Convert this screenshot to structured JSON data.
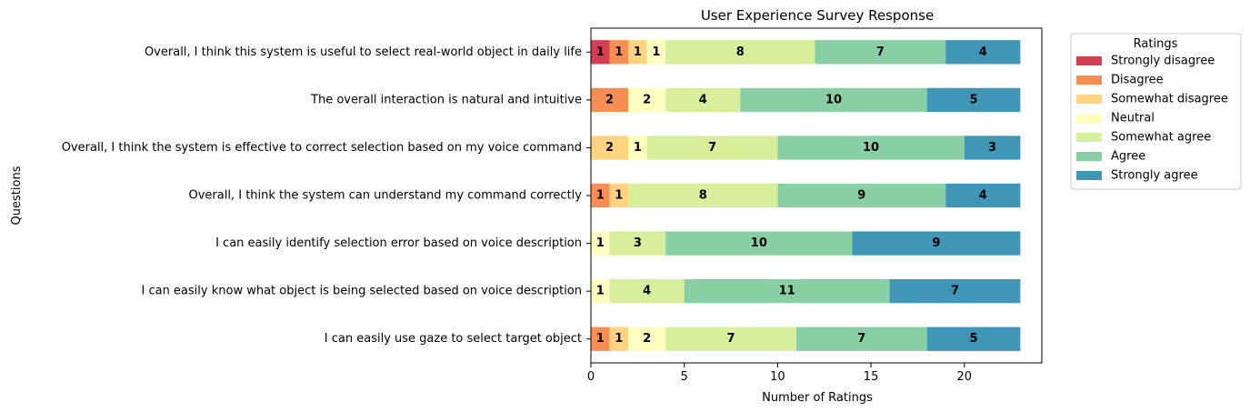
{
  "chart_data": {
    "type": "bar",
    "orientation": "horizontal",
    "stacked": true,
    "title": "User Experience Survey Response",
    "xlabel": "Number of Ratings",
    "ylabel": "Questions",
    "xlim": [
      0,
      24.15
    ],
    "xticks": [
      0,
      5,
      10,
      15,
      20
    ],
    "grid": false,
    "legend_title": "Ratings",
    "legend_position": "outside-top-right",
    "categories": [
      "Overall, I think this system is useful to select real-world object in daily life",
      "The overall interaction is natural and intuitive",
      "Overall, I think the system is effective to correct selection based on my voice command",
      "Overall, I think the system can understand my command correctly",
      "I can easily identify selection error based on voice description",
      "I can easily know what object is being selected based on voice description",
      "I can easily use gaze to select target object"
    ],
    "series": [
      {
        "name": "Strongly disagree",
        "color": "#d53e4f",
        "values": [
          1,
          0,
          0,
          0,
          0,
          0,
          0
        ]
      },
      {
        "name": "Disagree",
        "color": "#f98e52",
        "values": [
          1,
          2,
          0,
          1,
          0,
          0,
          1
        ]
      },
      {
        "name": "Somewhat disagree",
        "color": "#fed481",
        "values": [
          1,
          0,
          2,
          1,
          0,
          0,
          1
        ]
      },
      {
        "name": "Neutral",
        "color": "#ffffbf",
        "values": [
          1,
          2,
          1,
          0,
          1,
          1,
          2
        ]
      },
      {
        "name": "Somewhat agree",
        "color": "#d7ef9b",
        "values": [
          8,
          4,
          7,
          8,
          3,
          4,
          7
        ]
      },
      {
        "name": "Agree",
        "color": "#88cfa4",
        "values": [
          7,
          10,
          10,
          9,
          10,
          11,
          7
        ]
      },
      {
        "name": "Strongly agree",
        "color": "#3f96b7",
        "values": [
          4,
          5,
          3,
          4,
          9,
          7,
          5
        ]
      }
    ]
  }
}
